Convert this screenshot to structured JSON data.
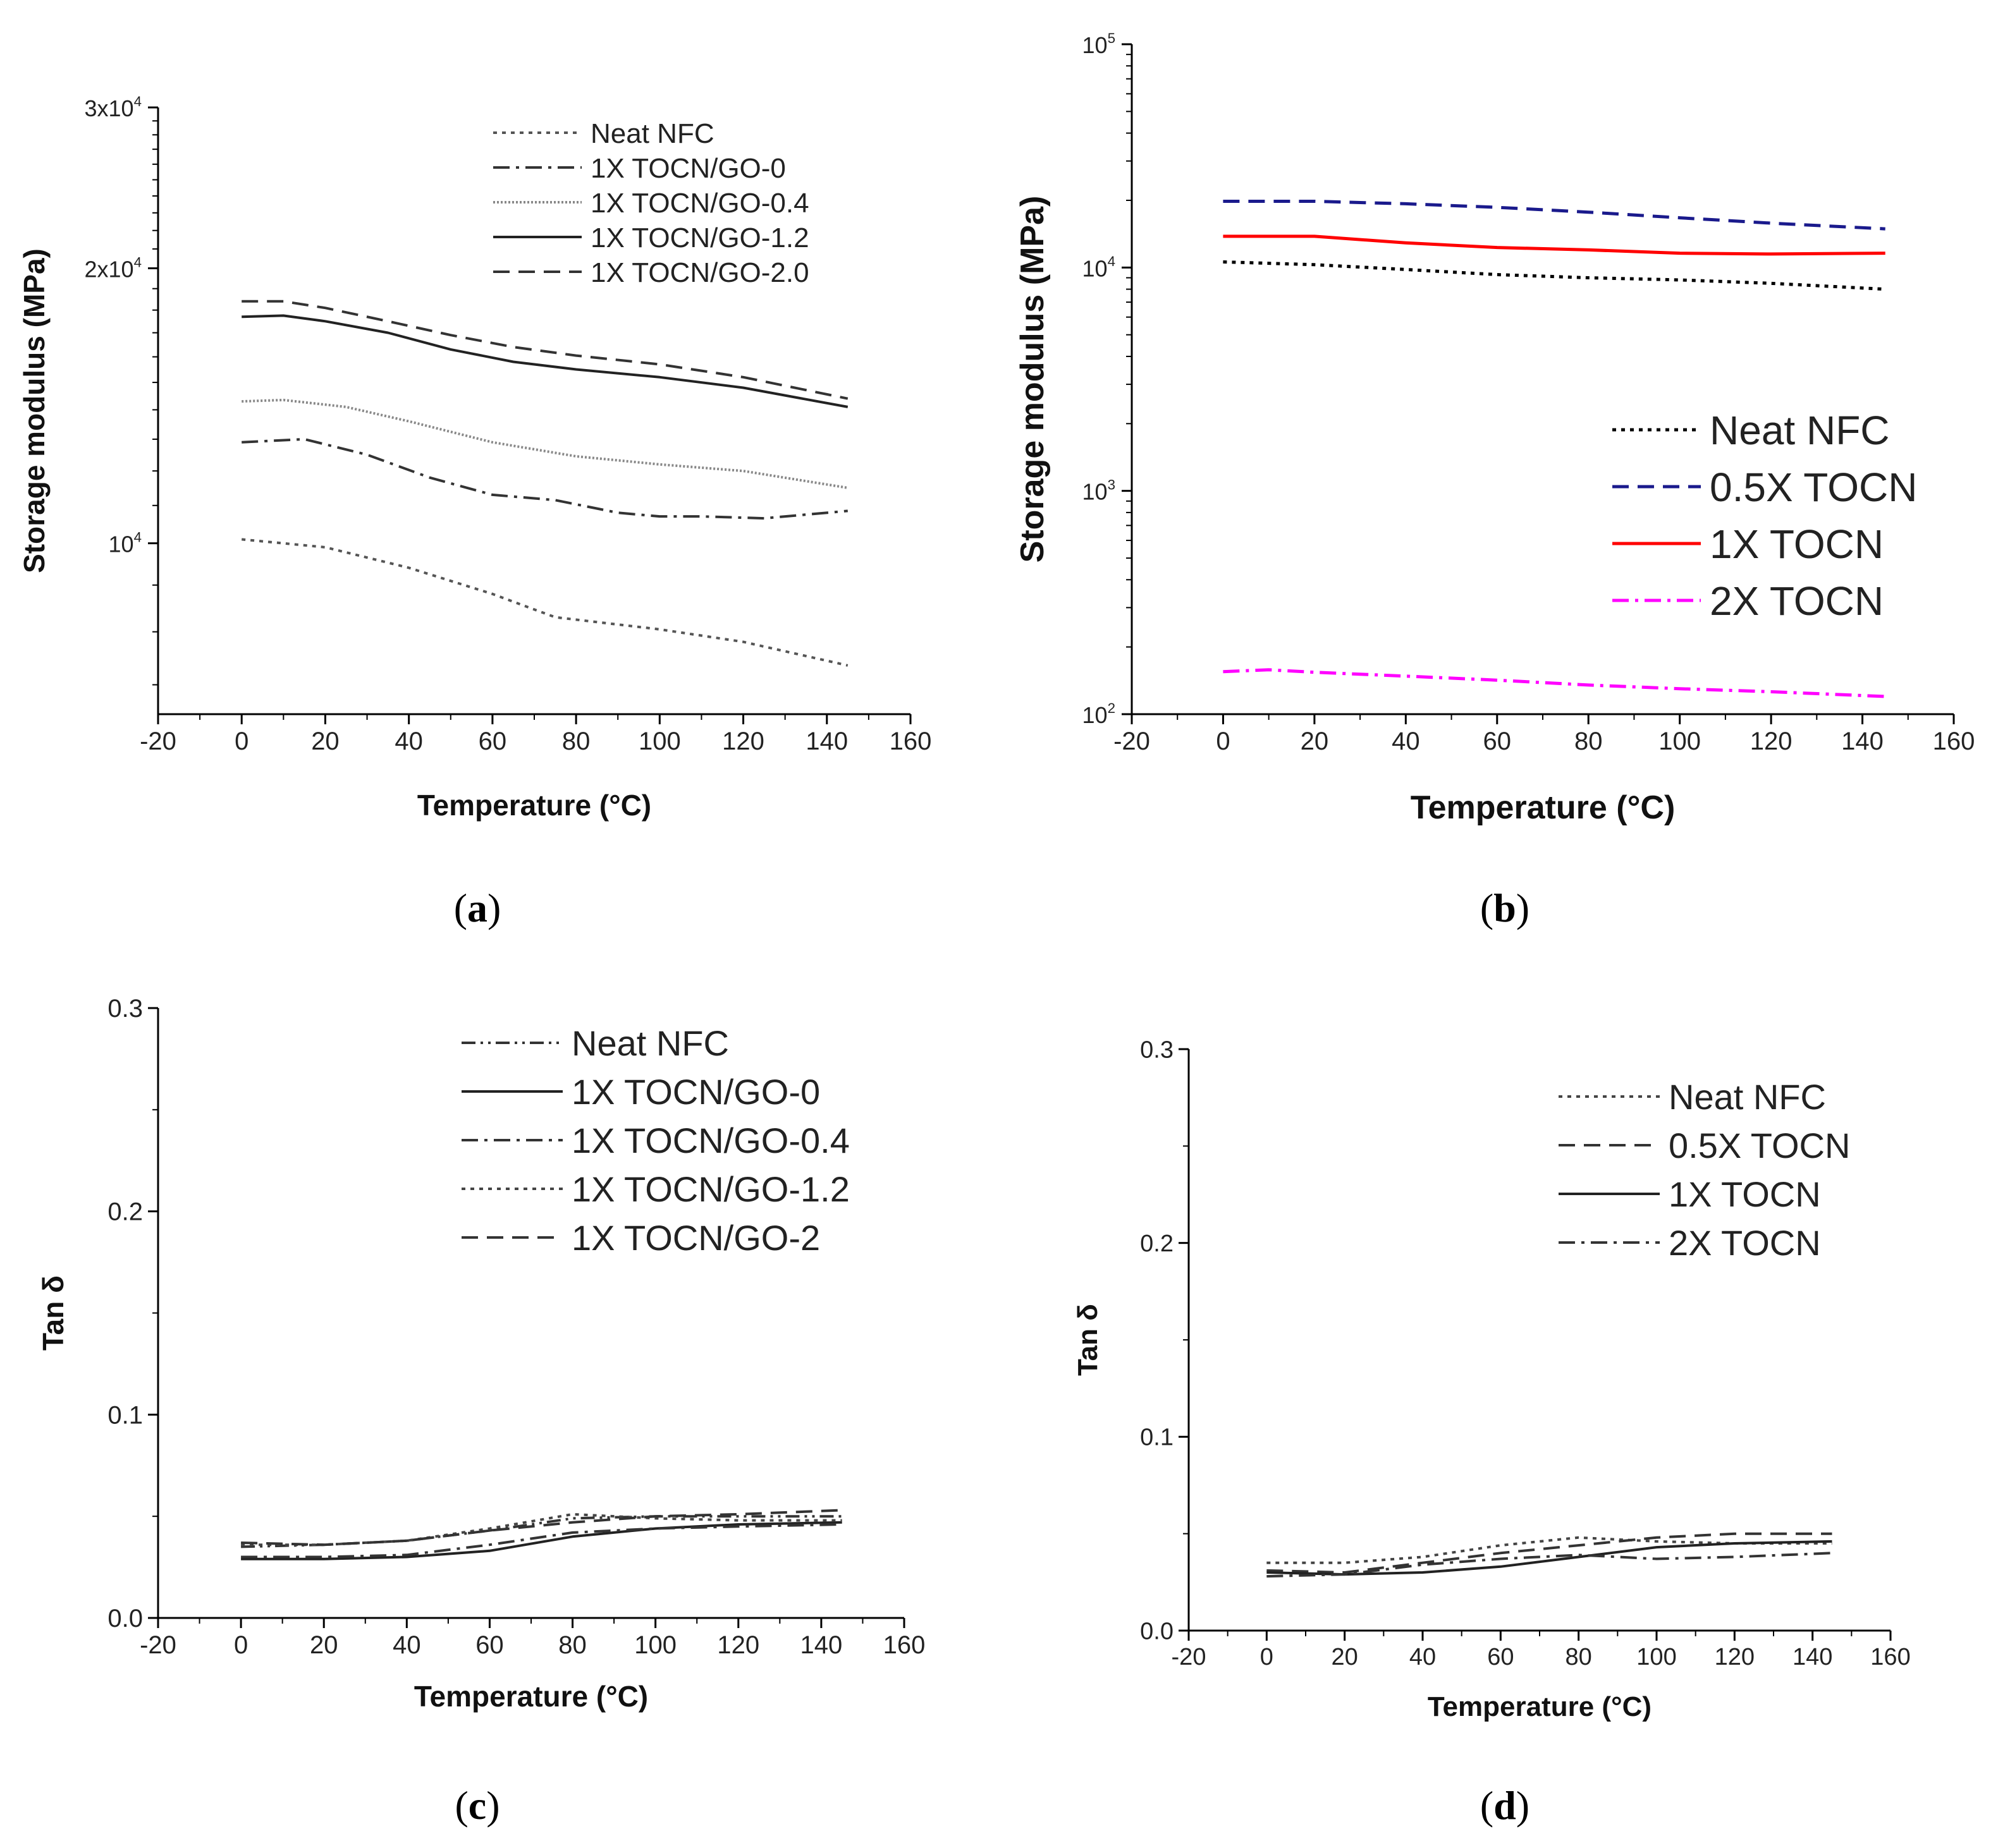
{
  "chart_data": [
    {
      "panel": "a",
      "caption_letter": "a",
      "type": "line",
      "xlabel": "Temperature (°C)",
      "ylabel": "Storage modulus (MPa)",
      "xlim": [
        -20,
        160
      ],
      "xticks": [
        -20,
        0,
        20,
        40,
        60,
        80,
        100,
        120,
        140,
        160
      ],
      "ylim": [
        6500,
        30000
      ],
      "yscale": "log",
      "yticks_labeled": [
        {
          "value": 10000,
          "base": "10",
          "exp": "4"
        },
        {
          "value": 20000,
          "base": "2x10",
          "exp": "4"
        },
        {
          "value": 30000,
          "base": "3x10",
          "exp": "4"
        }
      ],
      "yticks_minor": [
        7000,
        8000,
        9000,
        11000,
        12000,
        13000,
        14000,
        15000,
        16000,
        17000,
        18000,
        19000,
        21000,
        22000,
        23000,
        24000,
        25000,
        26000,
        27000,
        28000,
        29000
      ],
      "legend_position": "top-center",
      "series": [
        {
          "name": "Neat NFC",
          "style": "dotted",
          "color": "#555555",
          "x": [
            0,
            20,
            40,
            60,
            75,
            100,
            120,
            145
          ],
          "y": [
            10100,
            9900,
            9400,
            8800,
            8300,
            8050,
            7800,
            7350
          ]
        },
        {
          "name": "1X TOCN/GO-0",
          "style": "dashdot",
          "color": "#333333",
          "x": [
            0,
            15,
            30,
            45,
            60,
            75,
            90,
            100,
            110,
            125,
            145
          ],
          "y": [
            12900,
            13000,
            12500,
            11800,
            11300,
            11150,
            10800,
            10700,
            10700,
            10650,
            10850
          ]
        },
        {
          "name": "1X TOCN/GO-0.4",
          "style": "dotted-fine",
          "color": "#888888",
          "x": [
            0,
            10,
            25,
            40,
            60,
            80,
            100,
            120,
            145
          ],
          "y": [
            14300,
            14350,
            14100,
            13600,
            12900,
            12450,
            12200,
            12000,
            11500
          ]
        },
        {
          "name": "1X TOCN/GO-1.2",
          "style": "solid",
          "color": "#222222",
          "x": [
            0,
            10,
            20,
            35,
            50,
            65,
            80,
            100,
            120,
            145
          ],
          "y": [
            17700,
            17750,
            17500,
            17000,
            16300,
            15800,
            15500,
            15200,
            14800,
            14100
          ]
        },
        {
          "name": "1X TOCN/GO-2.0",
          "style": "dashed",
          "color": "#333333",
          "x": [
            0,
            10,
            20,
            35,
            50,
            65,
            80,
            100,
            120,
            145
          ],
          "y": [
            18400,
            18400,
            18100,
            17500,
            16900,
            16400,
            16050,
            15700,
            15200,
            14400
          ]
        }
      ]
    },
    {
      "panel": "b",
      "caption_letter": "b",
      "type": "line",
      "xlabel": "Temperature (°C)",
      "ylabel": "Storage modulus (MPa)",
      "xlim": [
        -20,
        160
      ],
      "xticks": [
        -20,
        0,
        20,
        40,
        60,
        80,
        100,
        120,
        140,
        160
      ],
      "ylim": [
        100,
        100000
      ],
      "yscale": "log",
      "yticks_labeled": [
        {
          "value": 100,
          "base": "10",
          "exp": "2"
        },
        {
          "value": 1000,
          "base": "10",
          "exp": "3"
        },
        {
          "value": 10000,
          "base": "10",
          "exp": "4"
        },
        {
          "value": 100000,
          "base": "10",
          "exp": "5"
        }
      ],
      "legend_position": "center-right",
      "series": [
        {
          "name": "Neat NFC",
          "style": "dotted",
          "color": "#000000",
          "x": [
            0,
            20,
            40,
            60,
            80,
            100,
            120,
            145
          ],
          "y": [
            10600,
            10300,
            9800,
            9300,
            9000,
            8800,
            8500,
            8000
          ]
        },
        {
          "name": "0.5X TOCN",
          "style": "dashed",
          "color": "#1a1a8c",
          "x": [
            0,
            20,
            40,
            60,
            80,
            100,
            120,
            145
          ],
          "y": [
            19800,
            19800,
            19300,
            18600,
            17700,
            16700,
            15800,
            14900
          ]
        },
        {
          "name": "1X TOCN",
          "style": "solid",
          "color": "#ff0000",
          "x": [
            0,
            20,
            40,
            60,
            80,
            100,
            120,
            145
          ],
          "y": [
            13800,
            13800,
            12900,
            12300,
            12000,
            11600,
            11500,
            11600
          ]
        },
        {
          "name": "2X TOCN",
          "style": "dashdot",
          "color": "#ff00ff",
          "x": [
            0,
            10,
            20,
            40,
            60,
            80,
            100,
            120,
            145
          ],
          "y": [
            155,
            158,
            154,
            148,
            142,
            135,
            130,
            126,
            120
          ]
        }
      ]
    },
    {
      "panel": "c",
      "caption_letter": "c",
      "type": "line",
      "xlabel": "Temperature (°C)",
      "ylabel": "Tan δ",
      "xlim": [
        -20,
        160
      ],
      "xticks": [
        -20,
        0,
        20,
        40,
        60,
        80,
        100,
        120,
        140,
        160
      ],
      "ylim": [
        0.0,
        0.3
      ],
      "yticks": [
        "0.0",
        "0.1",
        "0.2",
        "0.3"
      ],
      "legend_position": "top-center",
      "series": [
        {
          "name": "Neat NFC",
          "style": "dashdotdot",
          "color": "#333333",
          "x": [
            0,
            20,
            40,
            60,
            80,
            100,
            120,
            145
          ],
          "y": [
            0.035,
            0.036,
            0.038,
            0.043,
            0.049,
            0.05,
            0.05,
            0.05
          ]
        },
        {
          "name": "1X TOCN/GO-0",
          "style": "solid",
          "color": "#222222",
          "x": [
            0,
            20,
            40,
            60,
            80,
            100,
            120,
            145
          ],
          "y": [
            0.029,
            0.029,
            0.03,
            0.033,
            0.04,
            0.044,
            0.046,
            0.047
          ]
        },
        {
          "name": "1X TOCN/GO-0.4",
          "style": "dashdot",
          "color": "#333333",
          "x": [
            0,
            20,
            40,
            60,
            80,
            100,
            120,
            145
          ],
          "y": [
            0.03,
            0.03,
            0.031,
            0.036,
            0.042,
            0.044,
            0.045,
            0.046
          ]
        },
        {
          "name": "1X TOCN/GO-1.2",
          "style": "dotted",
          "color": "#444444",
          "x": [
            0,
            20,
            40,
            60,
            80,
            100,
            120,
            145
          ],
          "y": [
            0.036,
            0.036,
            0.038,
            0.044,
            0.051,
            0.049,
            0.048,
            0.048
          ]
        },
        {
          "name": "1X TOCN/GO-2",
          "style": "dashed",
          "color": "#333333",
          "x": [
            0,
            20,
            40,
            60,
            80,
            100,
            120,
            145
          ],
          "y": [
            0.037,
            0.036,
            0.038,
            0.043,
            0.047,
            0.05,
            0.051,
            0.053
          ]
        }
      ]
    },
    {
      "panel": "d",
      "caption_letter": "d",
      "type": "line",
      "xlabel": "Temperature (°C)",
      "ylabel": "Tan δ",
      "xlim": [
        -20,
        160
      ],
      "xticks": [
        -20,
        0,
        20,
        40,
        60,
        80,
        100,
        120,
        140,
        160
      ],
      "ylim": [
        0.0,
        0.3
      ],
      "yticks": [
        "0.0",
        "0.1",
        "0.2",
        "0.3"
      ],
      "legend_position": "top-right",
      "series": [
        {
          "name": "Neat NFC",
          "style": "dotted",
          "color": "#444444",
          "x": [
            0,
            20,
            40,
            60,
            80,
            100,
            120,
            145
          ],
          "y": [
            0.035,
            0.035,
            0.038,
            0.044,
            0.048,
            0.046,
            0.045,
            0.045
          ]
        },
        {
          "name": "0.5X TOCN",
          "style": "dashed",
          "color": "#333333",
          "x": [
            0,
            20,
            40,
            60,
            80,
            100,
            120,
            145
          ],
          "y": [
            0.031,
            0.03,
            0.035,
            0.04,
            0.044,
            0.048,
            0.05,
            0.05
          ]
        },
        {
          "name": "1X TOCN",
          "style": "solid",
          "color": "#222222",
          "x": [
            0,
            20,
            40,
            60,
            80,
            100,
            120,
            145
          ],
          "y": [
            0.03,
            0.029,
            0.03,
            0.033,
            0.038,
            0.043,
            0.045,
            0.046
          ]
        },
        {
          "name": "2X TOCN",
          "style": "dashdot",
          "color": "#333333",
          "x": [
            0,
            20,
            40,
            60,
            80,
            100,
            120,
            145
          ],
          "y": [
            0.028,
            0.029,
            0.034,
            0.037,
            0.039,
            0.037,
            0.038,
            0.04
          ]
        }
      ]
    }
  ]
}
